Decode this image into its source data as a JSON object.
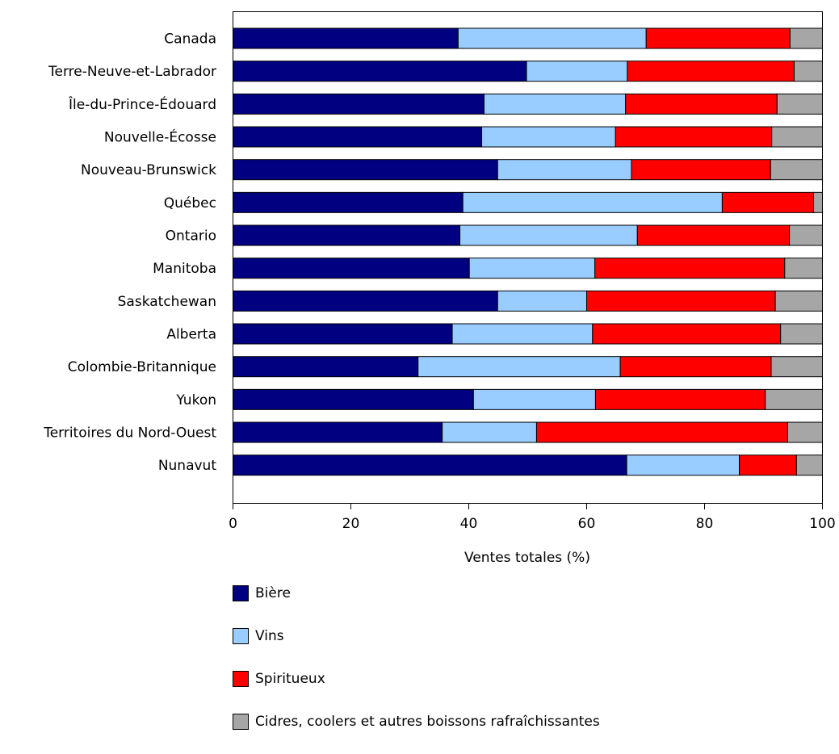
{
  "chart_data": {
    "type": "bar",
    "orientation": "horizontal",
    "stacked": true,
    "categories": [
      "Canada",
      "Terre-Neuve-et-Labrador",
      "Île-du-Prince-Édouard",
      "Nouvelle-Écosse",
      "Nouveau-Brunswick",
      "Québec",
      "Ontario",
      "Manitoba",
      "Saskatchewan",
      "Alberta",
      "Colombie-Britannique",
      "Yukon",
      "Territoires du Nord-Ouest",
      "Nunavut"
    ],
    "series": [
      {
        "name": "Bière",
        "color": "#000080",
        "values": [
          38.2,
          49.8,
          42.6,
          42.2,
          44.9,
          39.0,
          38.5,
          40.1,
          44.9,
          37.2,
          31.4,
          40.8,
          35.5,
          66.8
        ]
      },
      {
        "name": "Vins",
        "color": "#99ccff",
        "values": [
          31.9,
          17.1,
          24.0,
          22.7,
          22.7,
          44.0,
          30.1,
          21.3,
          15.1,
          23.8,
          34.3,
          20.7,
          16.0,
          19.1
        ]
      },
      {
        "name": "Spiritueux",
        "color": "#ff0000",
        "values": [
          24.4,
          28.3,
          25.7,
          26.5,
          23.6,
          15.5,
          25.8,
          32.2,
          32.0,
          31.9,
          25.6,
          28.8,
          42.6,
          9.7
        ]
      },
      {
        "name": "Cidres, coolers et autres boissons rafraîchissantes",
        "color": "#a6a6a6",
        "values": [
          5.5,
          4.8,
          7.7,
          8.6,
          8.8,
          1.5,
          5.6,
          6.4,
          8.0,
          7.1,
          8.7,
          9.7,
          5.9,
          4.4
        ]
      }
    ],
    "xlabel": "Ventes totales (%)",
    "ylabel": "",
    "xlim": [
      0,
      100
    ],
    "xticks": [
      "0",
      "20",
      "40",
      "60",
      "80",
      "100"
    ],
    "grid": false,
    "legend_position": "bottom"
  }
}
